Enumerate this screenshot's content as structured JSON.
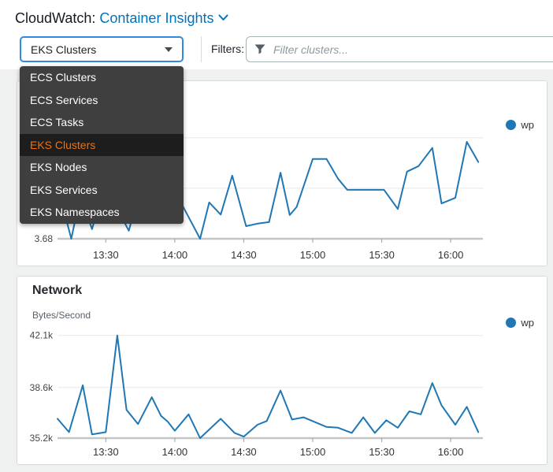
{
  "header": {
    "app_label": "CloudWatch:",
    "section_label": "Container Insights"
  },
  "toolbar": {
    "scope_select_value": "EKS Clusters",
    "filters_label": "Filters:",
    "filter_placeholder": "Filter clusters..."
  },
  "dropdown": {
    "items": [
      {
        "label": "ECS Clusters",
        "selected": false
      },
      {
        "label": "ECS Services",
        "selected": false
      },
      {
        "label": "ECS Tasks",
        "selected": false
      },
      {
        "label": "EKS Clusters",
        "selected": true
      },
      {
        "label": "EKS Nodes",
        "selected": false
      },
      {
        "label": "EKS Services",
        "selected": false
      },
      {
        "label": "EKS Namespaces",
        "selected": false
      }
    ]
  },
  "colors": {
    "accent_blue": "#0073bb",
    "selected_orange": "#ec7211",
    "series_blue": "#1f77b4",
    "dropdown_bg": "#3f3f3f"
  },
  "chart_data": [
    {
      "type": "line",
      "title": "",
      "ylabel": "",
      "grid": true,
      "legend_position": "top-right",
      "xlim": [
        "13:09",
        "16:14"
      ],
      "ylim": [
        3.68,
        5.85
      ],
      "x_tick_labels": [
        "13:30",
        "14:00",
        "14:30",
        "15:00",
        "15:30",
        "16:00"
      ],
      "y_ticks": [
        {
          "value": 3.68,
          "label": "3.68"
        },
        {
          "value": 4.68,
          "label": ""
        },
        {
          "value": 5.68,
          "label": ""
        }
      ],
      "series": [
        {
          "name": "wp",
          "color": "#1f77b4",
          "points": [
            [
              "13:09",
              4.55
            ],
            [
              "13:12",
              4.2
            ],
            [
              "13:15",
              3.68
            ],
            [
              "13:19",
              4.55
            ],
            [
              "13:24",
              3.87
            ],
            [
              "13:28",
              4.5
            ],
            [
              "13:33",
              4.45
            ],
            [
              "13:40",
              3.84
            ],
            [
              "13:44",
              4.5
            ],
            [
              "13:49",
              4.3
            ],
            [
              "13:55",
              4.5
            ],
            [
              "14:03",
              4.37
            ],
            [
              "14:11",
              3.68
            ],
            [
              "14:15",
              4.4
            ],
            [
              "14:20",
              4.16
            ],
            [
              "14:25",
              4.93
            ],
            [
              "14:31",
              3.93
            ],
            [
              "14:36",
              3.98
            ],
            [
              "14:41",
              4.01
            ],
            [
              "14:46",
              4.99
            ],
            [
              "14:50",
              4.15
            ],
            [
              "14:53",
              4.31
            ],
            [
              "15:00",
              5.26
            ],
            [
              "15:06",
              5.26
            ],
            [
              "15:11",
              4.87
            ],
            [
              "15:15",
              4.65
            ],
            [
              "15:31",
              4.65
            ],
            [
              "15:37",
              4.27
            ],
            [
              "15:41",
              5.01
            ],
            [
              "15:46",
              5.12
            ],
            [
              "15:52",
              5.48
            ],
            [
              "15:56",
              4.38
            ],
            [
              "16:02",
              4.49
            ],
            [
              "16:07",
              5.6
            ],
            [
              "16:12",
              5.2
            ]
          ]
        }
      ]
    },
    {
      "type": "line",
      "title": "Network",
      "ylabel": "Bytes/Second",
      "grid": true,
      "legend_position": "top-right",
      "xlim": [
        "13:09",
        "16:14"
      ],
      "ylim": [
        35200,
        42400
      ],
      "x_tick_labels": [
        "13:30",
        "14:00",
        "14:30",
        "15:00",
        "15:30",
        "16:00"
      ],
      "y_ticks": [
        {
          "value": 35200,
          "label": "35.2k"
        },
        {
          "value": 38600,
          "label": "38.6k"
        },
        {
          "value": 42100,
          "label": "42.1k"
        }
      ],
      "series": [
        {
          "name": "wp",
          "color": "#1f77b4",
          "points": [
            [
              "13:09",
              36500
            ],
            [
              "13:14",
              35600
            ],
            [
              "13:20",
              38750
            ],
            [
              "13:24",
              35450
            ],
            [
              "13:30",
              35600
            ],
            [
              "13:35",
              42100
            ],
            [
              "13:39",
              37100
            ],
            [
              "13:44",
              36150
            ],
            [
              "13:50",
              37950
            ],
            [
              "13:54",
              36700
            ],
            [
              "13:57",
              36300
            ],
            [
              "14:00",
              35700
            ],
            [
              "14:06",
              36800
            ],
            [
              "14:11",
              35200
            ],
            [
              "14:20",
              36500
            ],
            [
              "14:26",
              35550
            ],
            [
              "14:30",
              35300
            ],
            [
              "14:36",
              36100
            ],
            [
              "14:40",
              36350
            ],
            [
              "14:46",
              38400
            ],
            [
              "14:51",
              36450
            ],
            [
              "14:56",
              36600
            ],
            [
              "15:06",
              35950
            ],
            [
              "15:11",
              35900
            ],
            [
              "15:17",
              35550
            ],
            [
              "15:22",
              36600
            ],
            [
              "15:27",
              35550
            ],
            [
              "15:32",
              36400
            ],
            [
              "15:37",
              35900
            ],
            [
              "15:42",
              37000
            ],
            [
              "15:47",
              36800
            ],
            [
              "15:52",
              38900
            ],
            [
              "15:56",
              37400
            ],
            [
              "16:02",
              36100
            ],
            [
              "16:07",
              37300
            ],
            [
              "16:12",
              35600
            ]
          ]
        }
      ]
    }
  ]
}
